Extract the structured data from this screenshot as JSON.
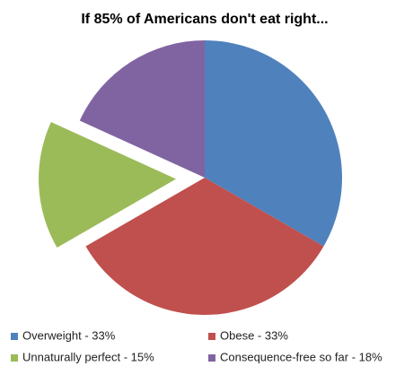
{
  "chart_data": {
    "type": "pie",
    "title": "If 85% of Americans don't eat right...",
    "categories": [
      "Overweight - 33%",
      "Obese - 33%",
      "Unnaturally perfect - 15%",
      "Consequence-free so far - 18%"
    ],
    "values": [
      33,
      33,
      15,
      18
    ],
    "colors": [
      "#4f81bd",
      "#c0504d",
      "#9bbb59",
      "#8064a2"
    ],
    "exploded": [
      false,
      false,
      true,
      false
    ]
  }
}
